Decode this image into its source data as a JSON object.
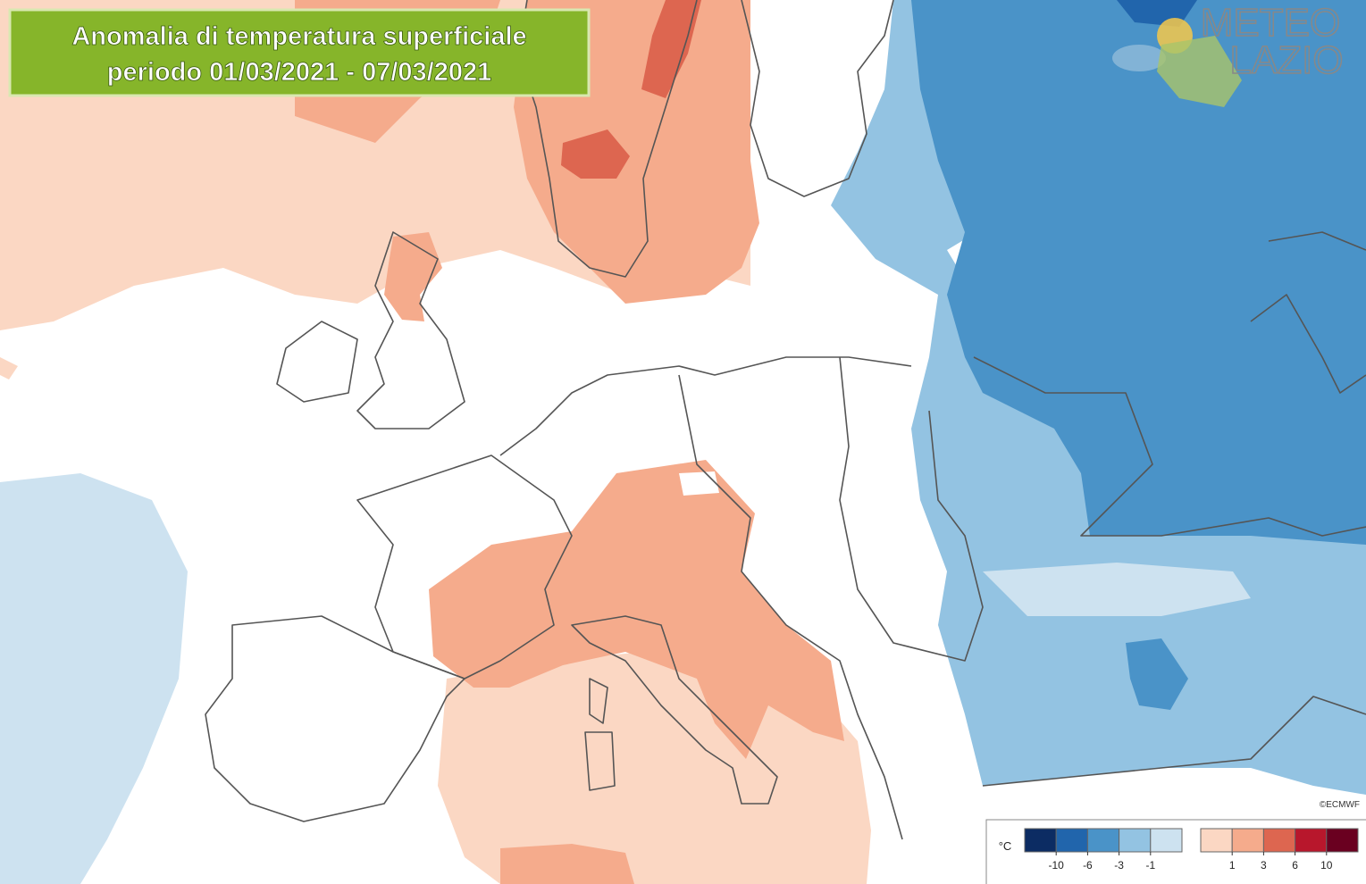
{
  "title": {
    "line1": "Anomalia di temperatura superficiale",
    "line2": "periodo 01/03/2021 - 07/03/2021"
  },
  "logo": {
    "line1": "METEO",
    "line2": "LAZIO"
  },
  "credit": "©ECMWF",
  "legend": {
    "unit": "°C",
    "negative": {
      "colors": [
        "#0c2c63",
        "#2165ac",
        "#4a93c8",
        "#93c3e2",
        "#cde2f0"
      ],
      "ticks": [
        -10,
        -6,
        -3,
        -1
      ]
    },
    "positive": {
      "colors": [
        "#fbd7c3",
        "#f5ab8c",
        "#dd6650",
        "#b8172c",
        "#6a0020"
      ],
      "ticks": [
        1,
        3,
        6,
        10
      ]
    }
  }
}
